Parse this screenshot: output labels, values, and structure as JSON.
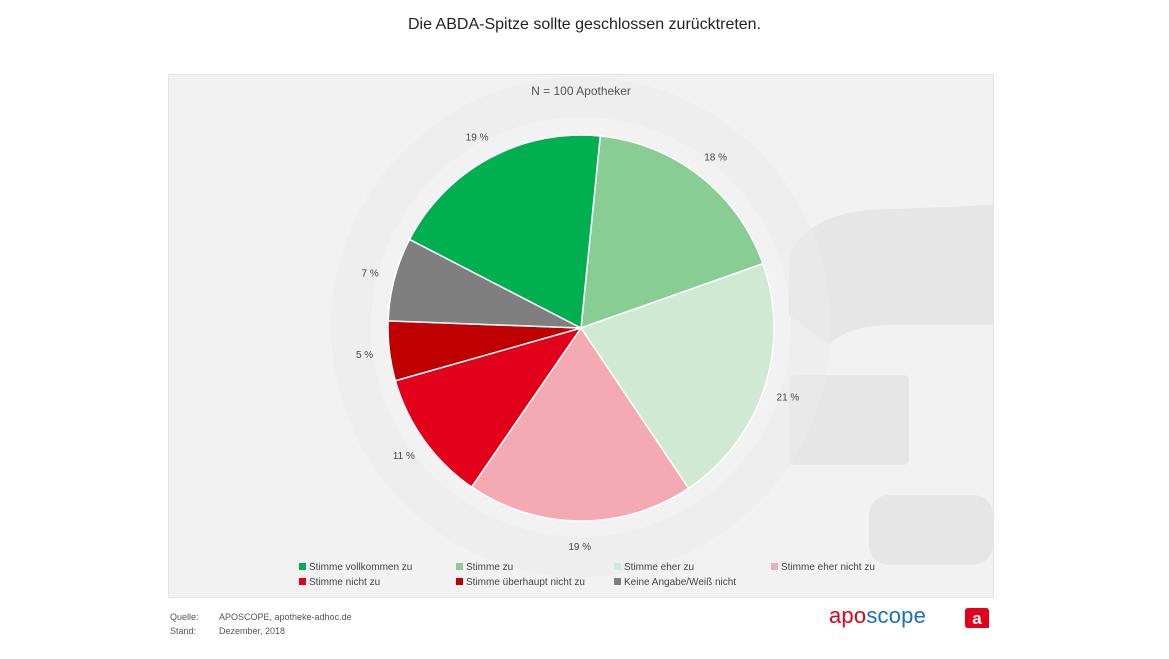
{
  "header": {
    "title": "Die ABDA-Spitze sollte geschlossen zurücktreten."
  },
  "chart_data": {
    "type": "pie",
    "title": "Die ABDA-Spitze sollte geschlossen zurücktreten.",
    "subtitle": "N = 100 Apotheker",
    "unit": "%",
    "slices": [
      {
        "label": "Stimme zu",
        "value": 18,
        "value_label": "18 %",
        "color": "#88ce94"
      },
      {
        "label": "Stimme eher zu",
        "value": 21,
        "value_label": "21 %",
        "color": "#cfe9d3"
      },
      {
        "label": "Stimme eher nicht zu",
        "value": 19,
        "value_label": "19 %",
        "color": "#f4aab2"
      },
      {
        "label": "Stimme nicht zu",
        "value": 11,
        "value_label": "11 %",
        "color": "#e2001a"
      },
      {
        "label": "Stimme überhaupt nicht zu",
        "value": 5,
        "value_label": "5 %",
        "color": "#c00000"
      },
      {
        "label": "Keine Angabe/Weiß nicht",
        "value": 7,
        "value_label": "7 %",
        "color": "#7f7f7f"
      },
      {
        "label": "Stimme vollkommen zu",
        "value": 19,
        "value_label": "19 %",
        "color": "#00b050"
      }
    ],
    "legend": {
      "placement": "bottom",
      "items": [
        {
          "label": "Stimme vollkommen zu",
          "color": "#00b050"
        },
        {
          "label": "Stimme zu",
          "color": "#88ce94"
        },
        {
          "label": "Stimme eher zu",
          "color": "#cfe9d3"
        },
        {
          "label": "Stimme eher nicht zu",
          "color": "#f4aab2"
        },
        {
          "label": "Stimme nicht zu",
          "color": "#e2001a"
        },
        {
          "label": "Stimme überhaupt nicht zu",
          "color": "#c00000"
        },
        {
          "label": "Keine Angabe/Weiß nicht",
          "color": "#7f7f7f"
        }
      ]
    }
  },
  "footer": {
    "source_label": "Quelle:",
    "source_value": "APOSCOPE, apotheke-adhoc.de",
    "date_label": "Stand:",
    "date_value": "Dezember, 2018"
  },
  "brand": {
    "part1": "apo",
    "part2": "scope",
    "logo_letter": "a",
    "color_red": "#e2001a",
    "color_blue": "#1a6fba"
  }
}
